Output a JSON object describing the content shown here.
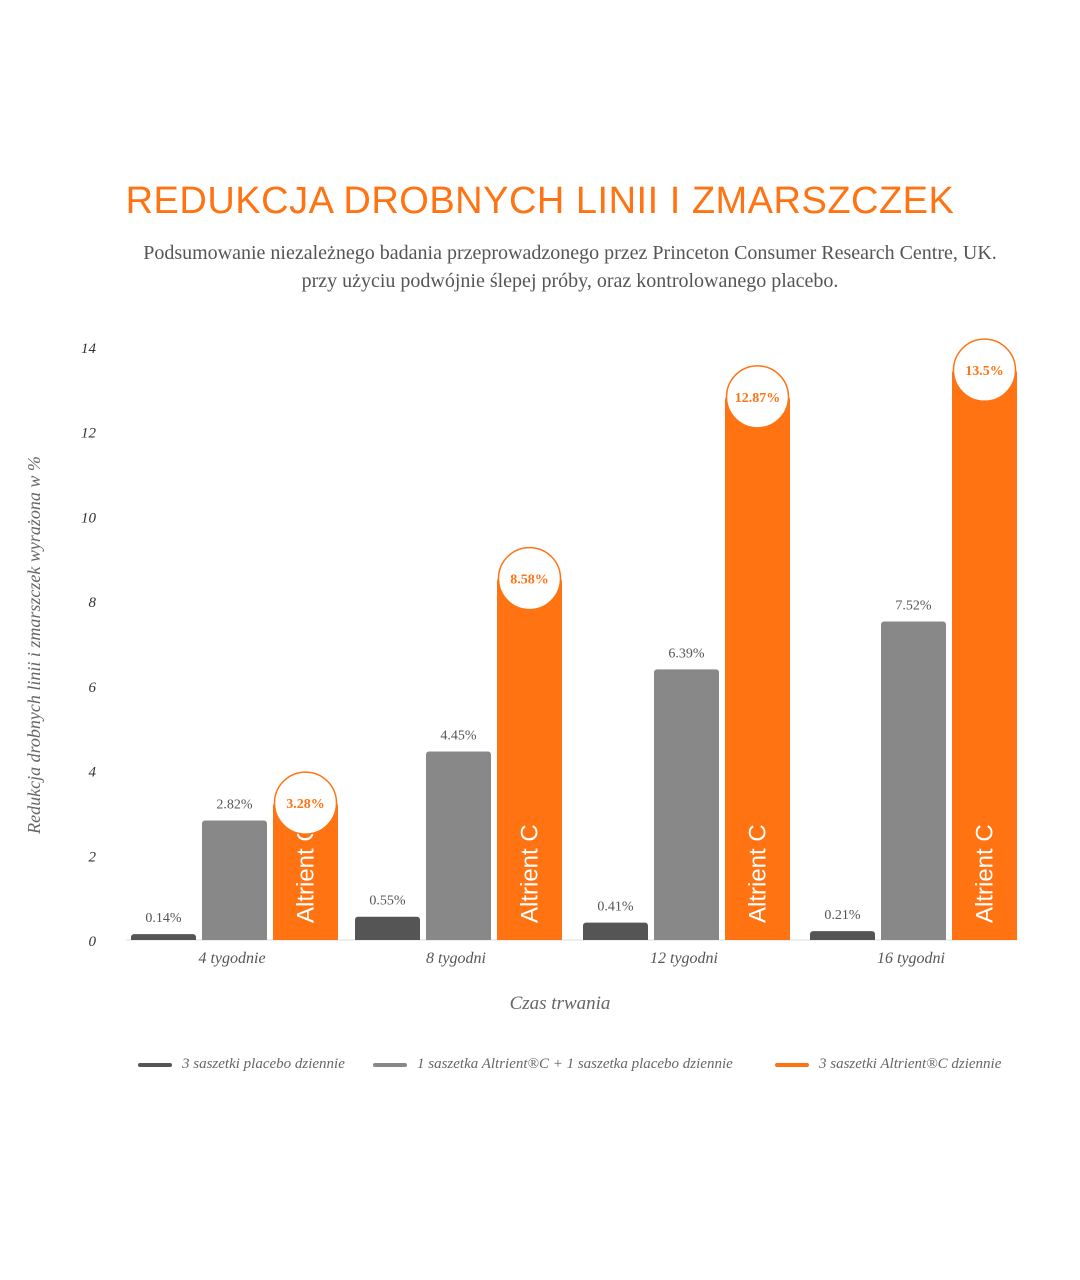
{
  "colors": {
    "accent": "#ff7312",
    "placebo": "#555555",
    "one_sachet": "#888888",
    "grid": "#dddddd",
    "text": "#555555"
  },
  "header": {
    "title": "REDUKCJA DROBNYCH LINII I ZMARSZCZEK",
    "subtitle_line1": "Podsumowanie niezależnego badania przeprowadzonego przez Princeton Consumer Research Centre, UK.",
    "subtitle_line2": "przy użyciu podwójnie ślepej próby, oraz kontrolowanego placebo."
  },
  "chart_data": {
    "type": "bar",
    "title": "REDUKCJA DROBNYCH LINII I ZMARSZCZEK",
    "xlabel": "Czas trwania",
    "ylabel": "Redukcja drobnych linii i zmarszczek wyrażona w %",
    "ylim": [
      0,
      14
    ],
    "yticks": [
      "0",
      "2",
      "4",
      "6",
      "8",
      "10",
      "12",
      "14"
    ],
    "categories": [
      "4 tygodnie",
      "8 tygodni",
      "12 tygodni",
      "16 tygodni"
    ],
    "series": [
      {
        "name": "3 saszetki placebo dziennie",
        "values": [
          0.14,
          0.55,
          0.41,
          0.21
        ],
        "labels": [
          "0.14%",
          "0.55%",
          "0.41%",
          "0.21%"
        ],
        "color": "#555555"
      },
      {
        "name": "1 saszetka Altrient®C + 1 saszetka placebo dziennie",
        "values": [
          2.82,
          4.45,
          6.39,
          7.52
        ],
        "labels": [
          "2.82%",
          "4.45%",
          "6.39%",
          "7.52%"
        ],
        "color": "#888888"
      },
      {
        "name": "3 saszetki Altrient®C dziennie",
        "values": [
          3.28,
          8.58,
          12.87,
          13.5
        ],
        "labels": [
          "3.28%",
          "8.58%",
          "12.87%",
          "13.5%"
        ],
        "color": "#ff7312",
        "bar_text": "Altrient C"
      }
    ],
    "grid": false,
    "legend_position": "bottom"
  }
}
